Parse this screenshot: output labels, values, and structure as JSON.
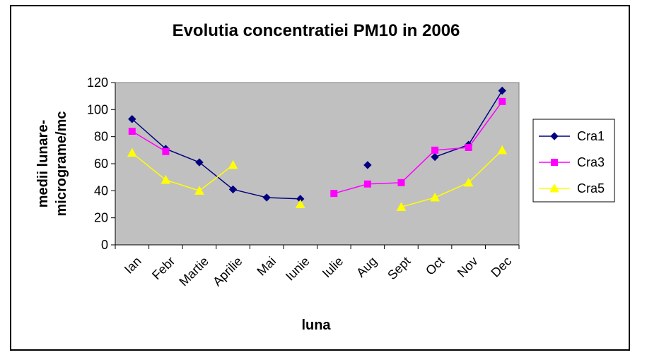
{
  "chart_data": {
    "type": "line",
    "title": "Evolutia concentratiei PM10 in 2006",
    "xlabel": "luna",
    "ylabel_line1": "medii lunare-",
    "ylabel_line2": "micrograme/mc",
    "ylim": [
      0,
      120
    ],
    "yticks": [
      0,
      20,
      40,
      60,
      80,
      100,
      120
    ],
    "grid": false,
    "plot_background": "#c0c0c0",
    "legend_position": "right",
    "categories": [
      "Ian",
      "Febr",
      "Martie",
      "Aprilie",
      "Mai",
      "Iunie",
      "Iulie",
      "Aug",
      "Sept",
      "Oct",
      "Nov",
      "Dec"
    ],
    "series": [
      {
        "name": "Cra1",
        "color": "#000080",
        "marker": "diamond",
        "values": [
          93,
          71,
          61,
          41,
          35,
          34,
          null,
          59,
          null,
          65,
          74,
          114
        ]
      },
      {
        "name": "Cra3",
        "color": "#ff00ff",
        "marker": "square",
        "values": [
          84,
          69,
          null,
          null,
          null,
          null,
          38,
          45,
          46,
          70,
          72,
          106
        ]
      },
      {
        "name": "Cra5",
        "color": "#ffff00",
        "marker": "triangle",
        "values": [
          68,
          48,
          40,
          59,
          null,
          30,
          null,
          null,
          28,
          35,
          46,
          70
        ]
      }
    ]
  }
}
